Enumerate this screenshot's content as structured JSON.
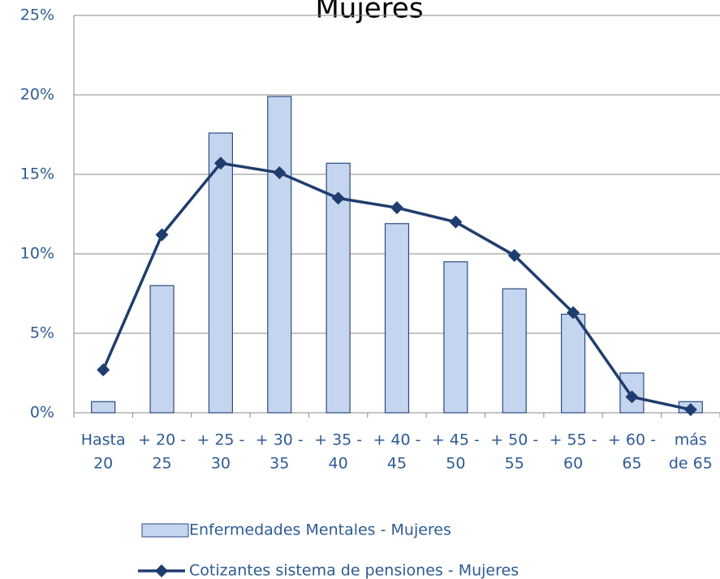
{
  "chart_data": {
    "type": "bar_line",
    "title": "Mujeres",
    "categories": [
      [
        "Hasta",
        "20"
      ],
      [
        "+ 20 -",
        "25"
      ],
      [
        "+ 25 -",
        "30"
      ],
      [
        "+ 30 -",
        "35"
      ],
      [
        "+ 35 -",
        "40"
      ],
      [
        "+ 40 -",
        "45"
      ],
      [
        "+ 45 -",
        "50"
      ],
      [
        "+ 50 -",
        "55"
      ],
      [
        "+ 55 -",
        "60"
      ],
      [
        "+ 60 -",
        "65"
      ],
      [
        "más",
        "de 65"
      ]
    ],
    "series": [
      {
        "name": "Enfermedades Mentales - Mujeres",
        "type": "bar",
        "color": "#c6d5ef",
        "values": [
          0.7,
          8.0,
          17.6,
          19.9,
          15.7,
          11.9,
          9.5,
          7.8,
          6.2,
          2.5,
          0.7
        ]
      },
      {
        "name": "Cotizantes sistema de pensiones - Mujeres",
        "type": "line",
        "color": "#1f3d6e",
        "values": [
          2.7,
          11.2,
          15.7,
          15.1,
          13.5,
          12.9,
          12.0,
          9.9,
          6.3,
          1.0,
          0.2
        ]
      }
    ],
    "ylim": [
      0,
      25
    ],
    "yticks": [
      {
        "value": 0,
        "label": "0%"
      },
      {
        "value": 5,
        "label": "5%"
      },
      {
        "value": 10,
        "label": "10%"
      },
      {
        "value": 15,
        "label": "15%"
      },
      {
        "value": 20,
        "label": "20%"
      },
      {
        "value": 25,
        "label": "25%"
      }
    ],
    "grid": true
  }
}
